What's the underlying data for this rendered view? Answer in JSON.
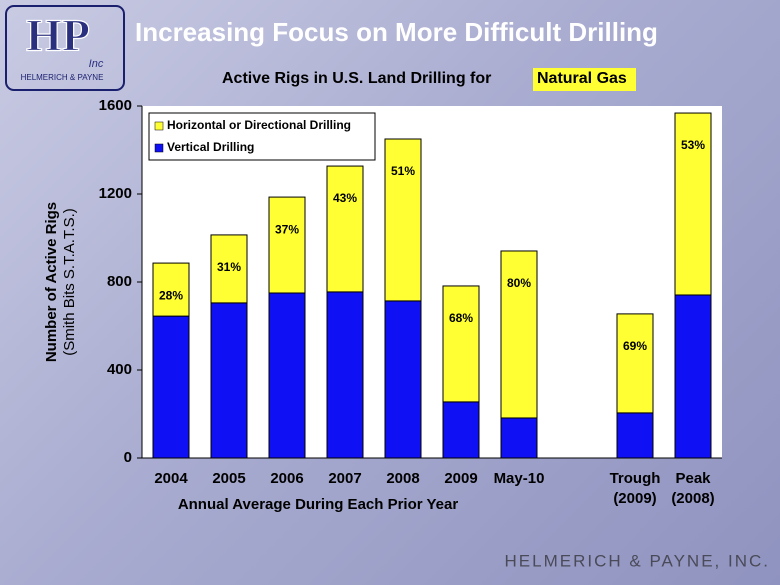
{
  "slide": {
    "title": "Increasing Focus on More Difficult Drilling",
    "logo_initials": "HP",
    "logo_inc": "Inc",
    "logo_name": "HELMERICH & PAYNE",
    "footer": "HELMERICH & PAYNE, INC."
  },
  "chart_data": {
    "type": "stacked_bar",
    "title": "Active Rigs in U.S. Land Drilling for",
    "title_highlight": "Natural Gas",
    "y_label": "Number of Active Rigs",
    "y_sublabel": "(Smith Bits S.T.A.T.S.)",
    "x_label": "Annual Average During Each Prior Year",
    "categories": [
      "2004",
      "2005",
      "2006",
      "2007",
      "2008",
      "2009",
      "May-10",
      null,
      "Trough\n(2009)",
      "Peak\n(2008)"
    ],
    "series": [
      {
        "name": "Vertical Drilling",
        "color": "#1010f5",
        "values": [
          645,
          705,
          750,
          755,
          714,
          255,
          182,
          null,
          205,
          741
        ]
      },
      {
        "name": "Horizontal or Directional Drilling",
        "color": "#ffff33",
        "values": [
          241,
          309,
          436,
          572,
          736,
          527,
          759,
          null,
          450,
          827
        ],
        "share_labels": [
          "28%",
          "31%",
          "37%",
          "43%",
          "51%",
          "68%",
          "80%",
          null,
          "69%",
          "53%"
        ]
      }
    ],
    "ylim": [
      0,
      1600
    ],
    "yticks": [
      0,
      400,
      800,
      1200,
      1600
    ],
    "grid": false
  }
}
